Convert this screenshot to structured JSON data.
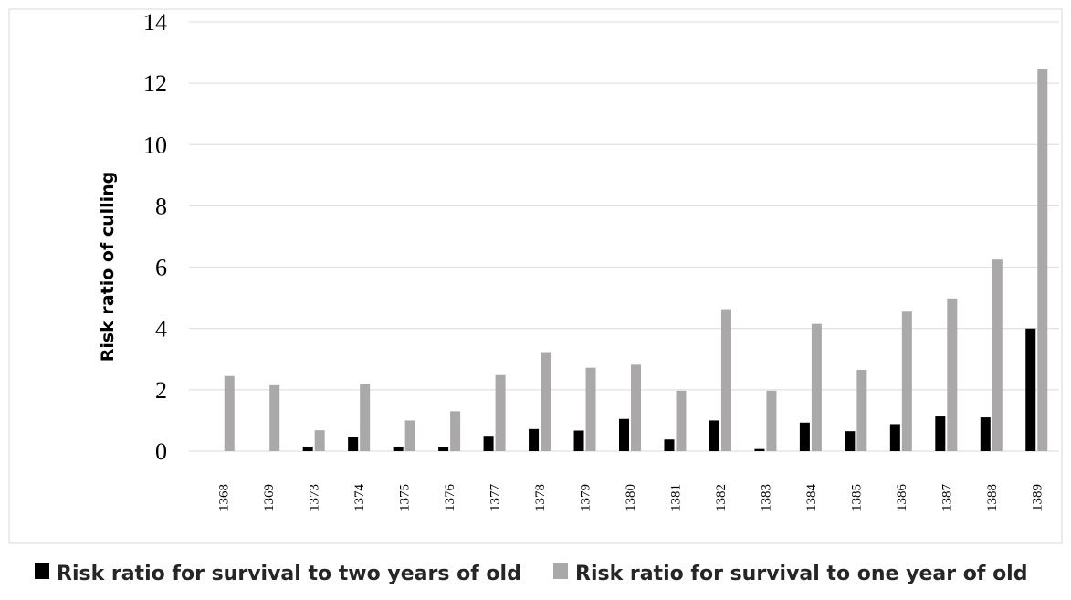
{
  "chart_data": {
    "type": "bar",
    "title": "",
    "xlabel": "",
    "ylabel": "Risk ratio of culling",
    "ylim": [
      0,
      14
    ],
    "yticks": [
      0,
      2,
      4,
      6,
      8,
      10,
      12,
      14
    ],
    "grid": true,
    "legend_position": "bottom",
    "categories": [
      "1368",
      "1369",
      "1373",
      "1374",
      "1375",
      "1376",
      "1377",
      "1378",
      "1379",
      "1380",
      "1381",
      "1382",
      "1383",
      "1384",
      "1385",
      "1386",
      "1387",
      "1388",
      "1389"
    ],
    "series": [
      {
        "name": "Risk ratio for survival to two years of old",
        "color": "#000000",
        "values": [
          0,
          0,
          0.15,
          0.45,
          0.15,
          0.12,
          0.5,
          0.72,
          0.67,
          1.05,
          0.38,
          1.0,
          0.07,
          0.93,
          0.65,
          0.88,
          1.13,
          1.1,
          4.0
        ]
      },
      {
        "name": "Risk ratio for survival to one year of old",
        "color": "#aaa8a8",
        "values": [
          2.45,
          2.15,
          0.68,
          2.2,
          1.0,
          1.3,
          2.48,
          3.23,
          2.72,
          2.82,
          1.97,
          4.63,
          1.97,
          4.15,
          2.65,
          4.55,
          4.98,
          6.25,
          12.45
        ]
      }
    ]
  }
}
